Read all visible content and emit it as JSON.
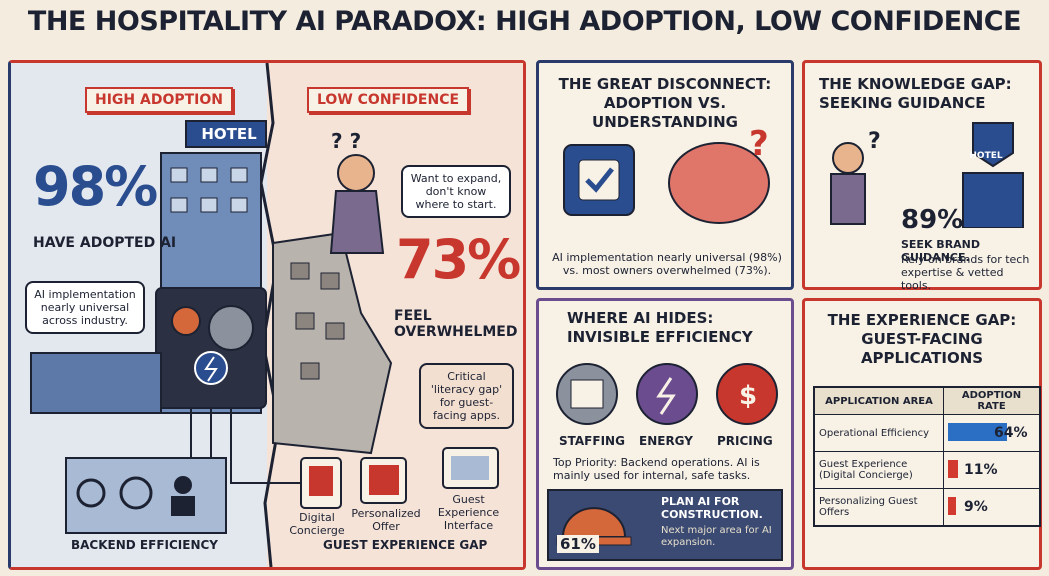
{
  "title": "THE HOSPITALITY AI PARADOX: HIGH ADOPTION, LOW CONFIDENCE",
  "high_adoption": {
    "badge": "HIGH ADOPTION",
    "sign": "HOTEL",
    "stat": "98%",
    "stat_label": "HAVE ADOPTED AI",
    "callout": "AI implementation nearly universal across industry.",
    "footer": "BACKEND EFFICIENCY"
  },
  "low_confidence": {
    "badge": "LOW CONFIDENCE",
    "thought": "Want to expand, don't know where to start.",
    "stat": "73%",
    "stat_label": "FEEL OVERWHELMED",
    "callout": "Critical 'literacy gap' for guest-facing apps.",
    "items": [
      "Digital Concierge",
      "Personalized Offer",
      "Guest Experience Interface"
    ],
    "footer": "GUEST EXPERIENCE GAP"
  },
  "disconnect": {
    "title": [
      "THE GREAT DISCONNECT:",
      "ADOPTION VS. UNDERSTANDING"
    ],
    "text": "AI implementation nearly universal (98%) vs. most owners overwhelmed (73%)."
  },
  "knowledge_gap": {
    "title": [
      "THE KNOWLEDGE GAP:",
      "SEEKING GUIDANCE"
    ],
    "sign": "HOTEL",
    "stat": "89%",
    "stat_label": "SEEK BRAND GUIDANCE.",
    "text": "Rely on brands for tech expertise & vetted tools."
  },
  "hides": {
    "title": [
      "WHERE AI HIDES:",
      "INVISIBLE EFFICIENCY"
    ],
    "icons": [
      "STAFFING",
      "ENERGY",
      "PRICING"
    ],
    "text": "Top Priority: Backend operations. AI is mainly used for internal, safe tasks.",
    "construction": {
      "stat": "61%",
      "headline": "PLAN AI FOR CONSTRUCTION.",
      "text": "Next major area for AI expansion."
    }
  },
  "experience_gap": {
    "title": [
      "THE EXPERIENCE GAP:",
      "GUEST-FACING APPLICATIONS"
    ],
    "table": {
      "headers": [
        "APPLICATION AREA",
        "ADOPTION RATE"
      ],
      "rows": [
        "Operational Efficiency",
        "Guest Experience (Digital Concierge)",
        "Personalizing Guest Offers"
      ],
      "values": [
        64,
        11,
        9
      ],
      "value_labels": [
        "64%",
        "11%",
        "9%"
      ]
    }
  }
}
